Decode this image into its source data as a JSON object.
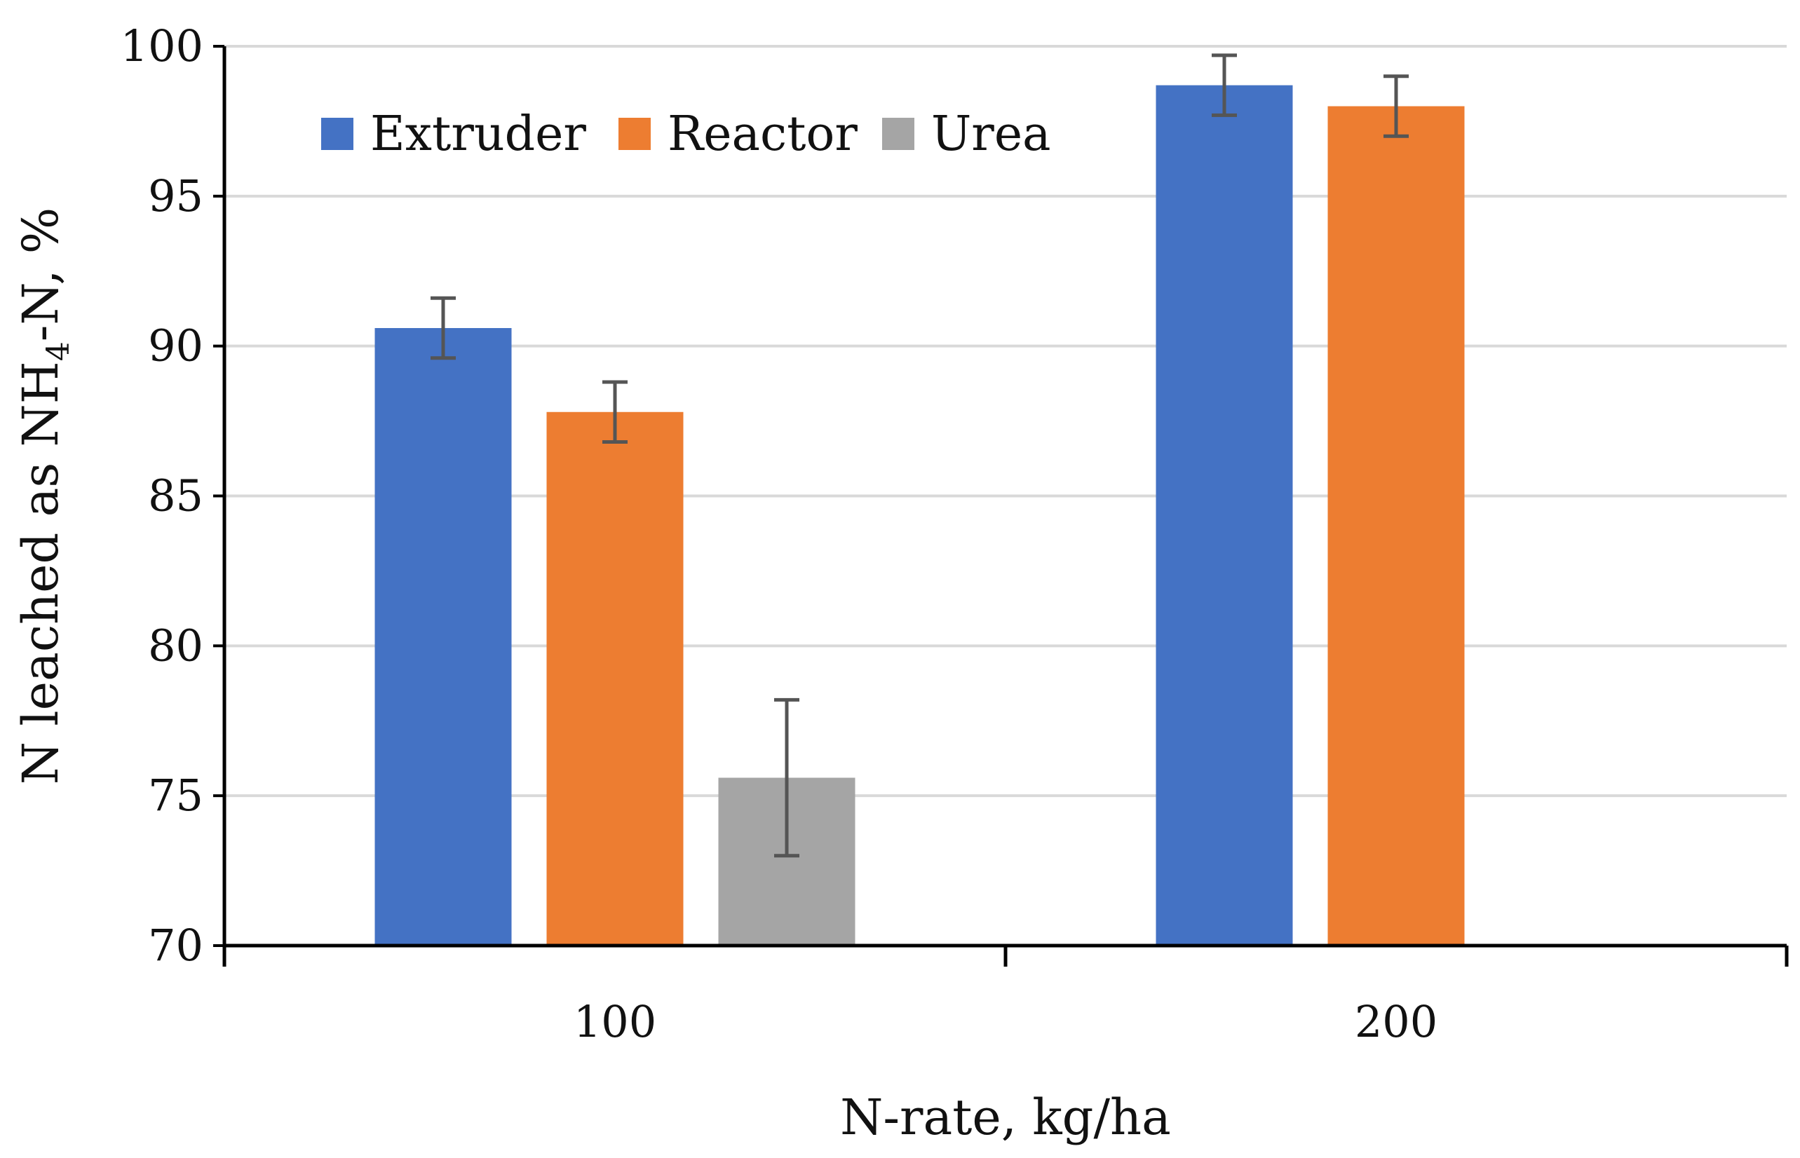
{
  "chart_data": {
    "type": "bar",
    "title": "",
    "xlabel": "N-rate, kg/ha",
    "ylabel_parts": [
      "N leached as NH",
      "4",
      "-N, %"
    ],
    "categories": [
      "100",
      "200"
    ],
    "series": [
      {
        "name": "Extruder",
        "color": "#4472C4",
        "values": [
          90.6,
          98.7
        ],
        "errors": [
          1.0,
          1.0
        ]
      },
      {
        "name": "Reactor",
        "color": "#ED7D31",
        "values": [
          87.8,
          98.0
        ],
        "errors": [
          1.0,
          1.0
        ]
      },
      {
        "name": "Urea",
        "color": "#A5A5A5",
        "values": [
          75.6,
          null
        ],
        "errors": [
          2.6,
          null
        ]
      }
    ],
    "ylim": [
      70,
      100
    ],
    "yticks": [
      "70",
      "75",
      "80",
      "85",
      "90",
      "95",
      "100"
    ],
    "grid": true,
    "legend_position": "top-left"
  }
}
